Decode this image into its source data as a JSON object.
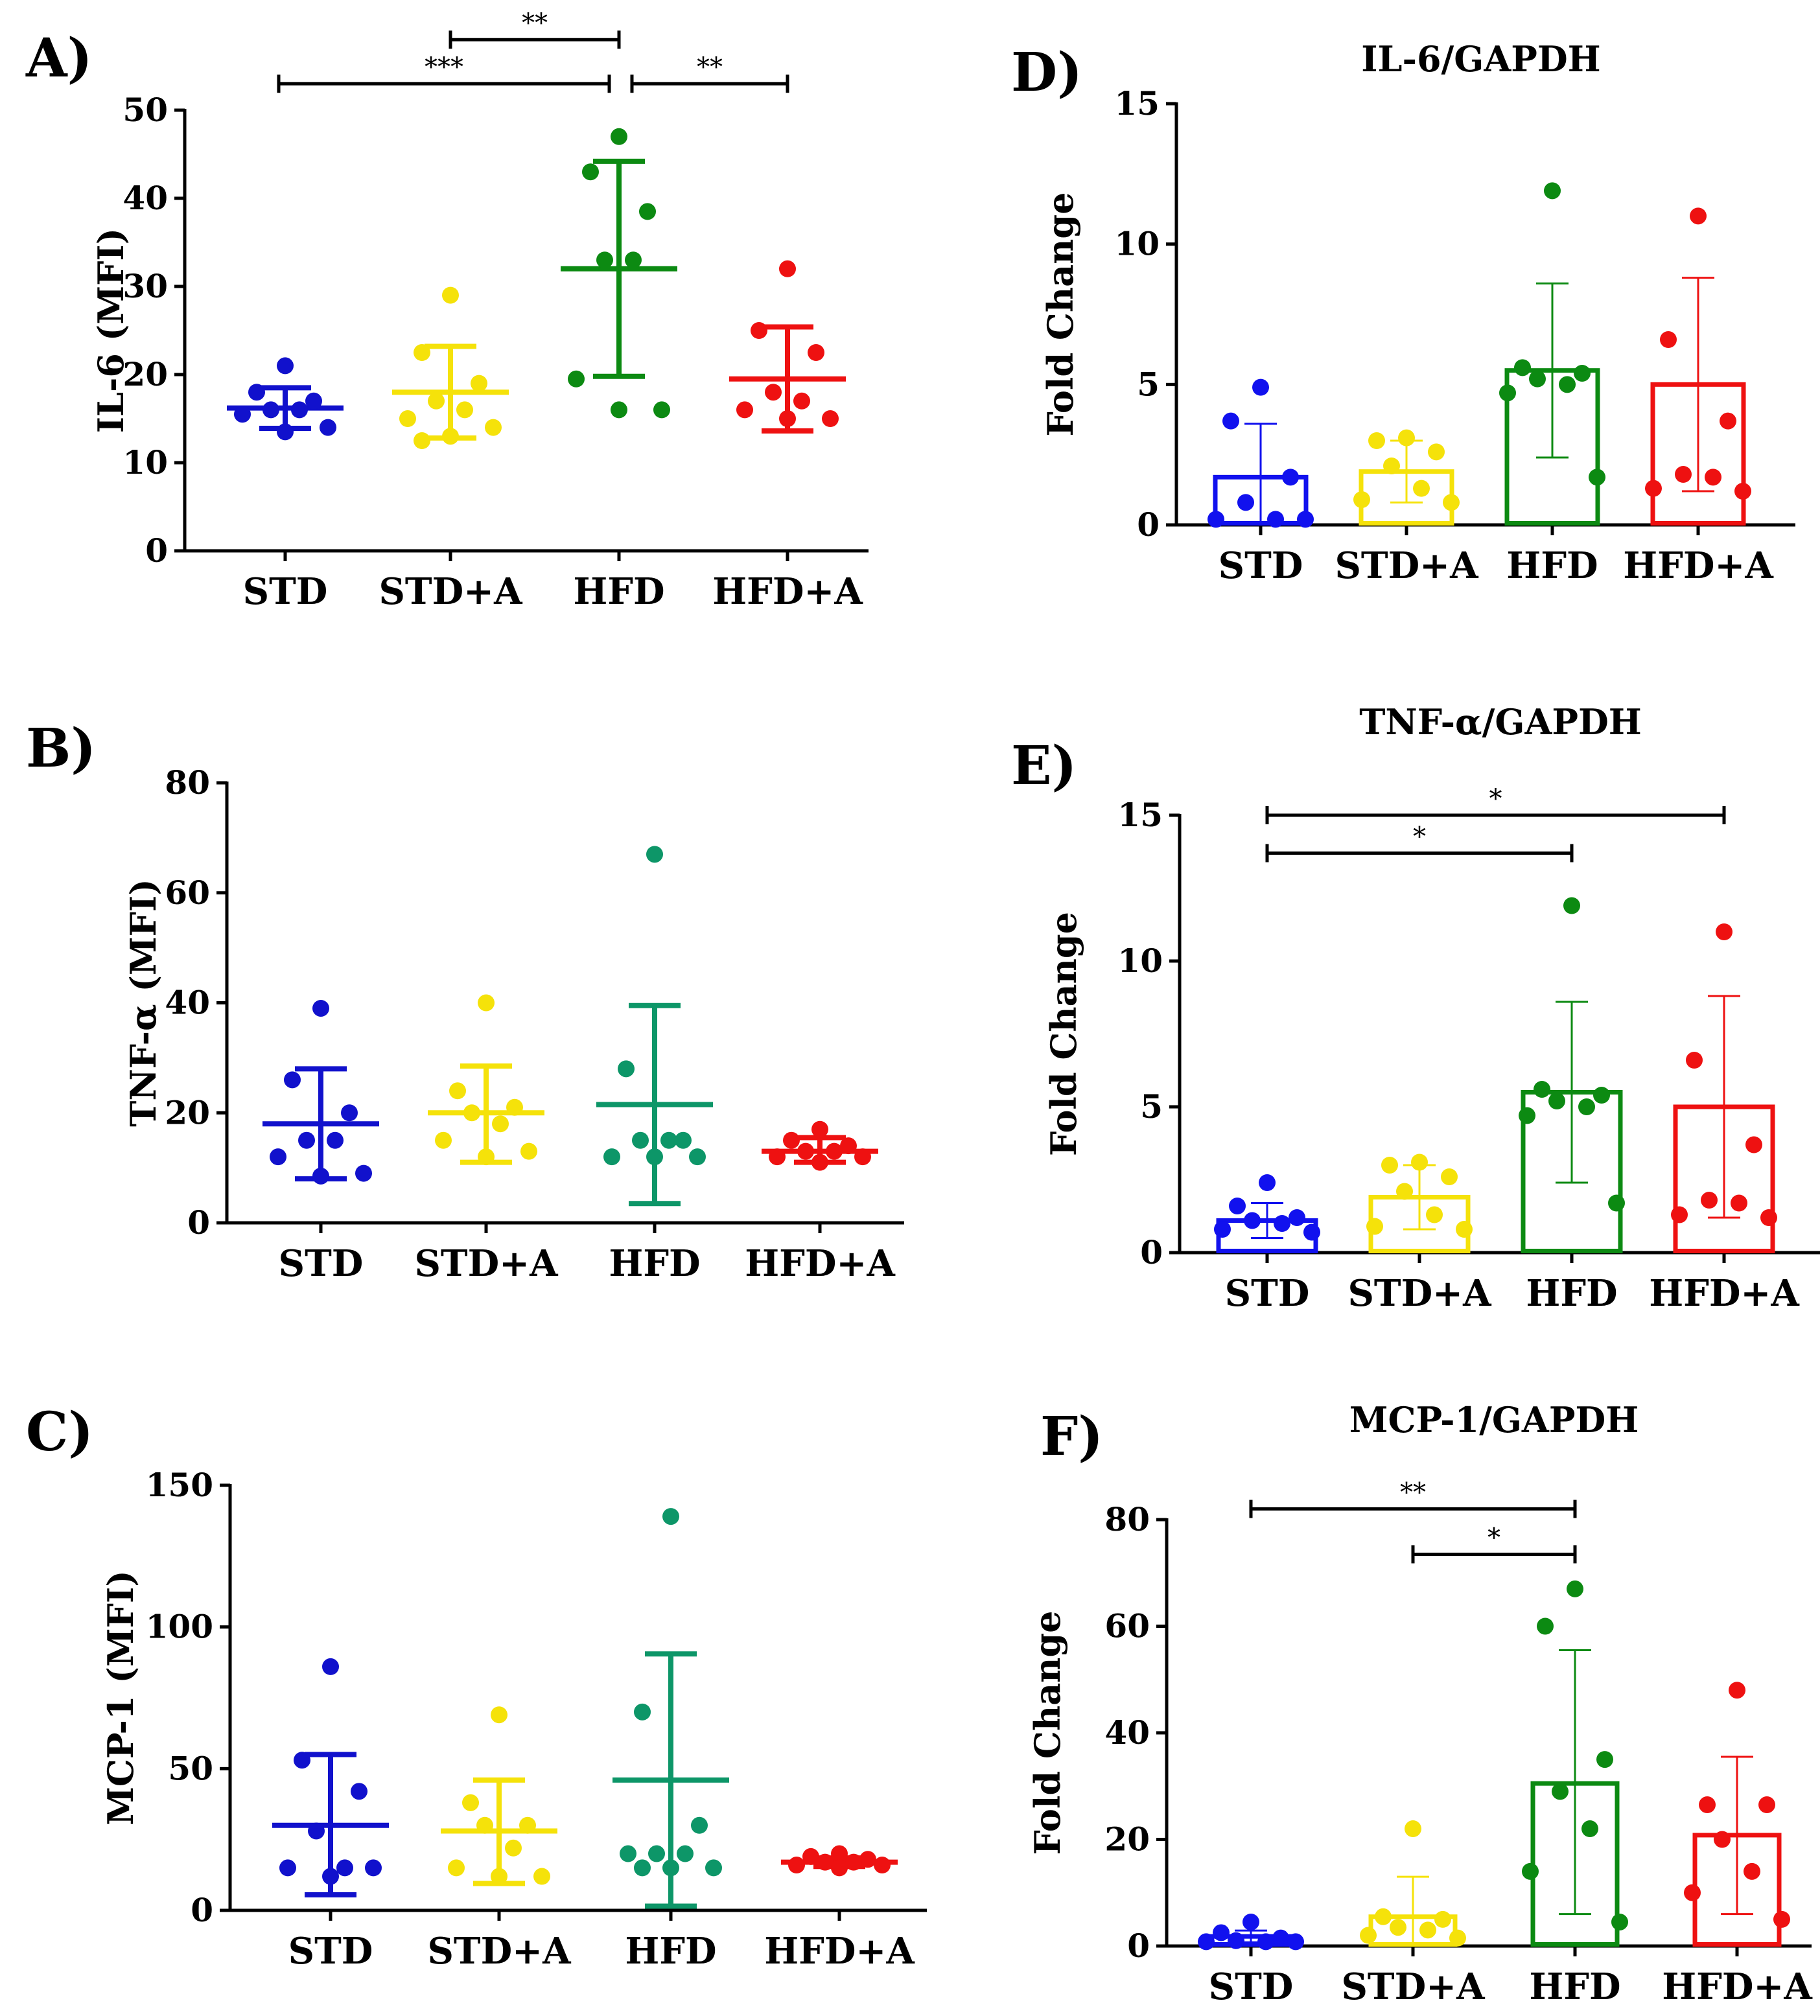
{
  "figure": "Cytokine levels (MFI) and relative gene expression (Fold Change) across four diet groups",
  "chart_data": [
    {
      "id": "A",
      "type": "scatter",
      "label": "A)",
      "title": "",
      "ylabel": "IL-6 (MFI)",
      "ylim": [
        0,
        50
      ],
      "yticks": [
        0,
        10,
        20,
        30,
        40,
        50
      ],
      "lw": 8,
      "categories": [
        "STD",
        "STD+A",
        "HFD",
        "HFD+A"
      ],
      "colors": [
        "#1111cc",
        "#f5e20a",
        "#0c8a12",
        "#ee1111"
      ],
      "groups": [
        {
          "name": "STD",
          "mean": 16.2,
          "upper": 18.5,
          "lower": 13.9,
          "points": [
            21,
            18,
            17,
            16,
            16,
            15.5,
            14,
            13.5
          ]
        },
        {
          "name": "STD+A",
          "mean": 18.0,
          "upper": 23.2,
          "lower": 12.8,
          "points": [
            29,
            22.5,
            19,
            17,
            16,
            15,
            14,
            13,
            12.5
          ]
        },
        {
          "name": "HFD",
          "mean": 32.0,
          "upper": 44.2,
          "lower": 19.8,
          "points": [
            47,
            43,
            38.5,
            33,
            33,
            19.5,
            16,
            16
          ]
        },
        {
          "name": "HFD+A",
          "mean": 19.5,
          "upper": 25.4,
          "lower": 13.6,
          "points": [
            32,
            25,
            22.5,
            18,
            17,
            16,
            15,
            15
          ]
        }
      ],
      "sig": [
        {
          "from": 2,
          "to": 3,
          "level": 58,
          "text": "**"
        },
        {
          "from": 1,
          "to": 3,
          "level": 53,
          "text": "***"
        },
        {
          "from": 3,
          "to": 4,
          "level": 53,
          "text": "**"
        }
      ]
    },
    {
      "id": "B",
      "type": "scatter",
      "label": "B)",
      "title": "",
      "ylabel": "TNF-α (MFI)",
      "ylim": [
        0,
        80
      ],
      "yticks": [
        0,
        20,
        40,
        60,
        80
      ],
      "lw": 8,
      "categories": [
        "STD",
        "STD+A",
        "HFD",
        "HFD+A"
      ],
      "colors": [
        "#1111cc",
        "#f5e20a",
        "#0d9668",
        "#ee1111"
      ],
      "groups": [
        {
          "name": "STD",
          "mean": 18.0,
          "upper": 28.0,
          "lower": 8.0,
          "points": [
            39,
            26,
            20,
            15,
            15,
            12,
            9,
            8.5
          ]
        },
        {
          "name": "STD+A",
          "mean": 20.0,
          "upper": 28.5,
          "lower": 11.0,
          "points": [
            40,
            24,
            21,
            20,
            18,
            15,
            13,
            12
          ]
        },
        {
          "name": "HFD",
          "mean": 21.5,
          "upper": 39.5,
          "lower": 3.5,
          "points": [
            67,
            28,
            15,
            15,
            15,
            12,
            12,
            12
          ]
        },
        {
          "name": "HFD+A",
          "mean": 13.0,
          "upper": 15.5,
          "lower": 11.0,
          "points": [
            17,
            15,
            14,
            13,
            13,
            12,
            12,
            11
          ]
        }
      ],
      "sig": []
    },
    {
      "id": "C",
      "type": "scatter",
      "label": "C)",
      "title": "",
      "ylabel": "MCP-1 (MFI)",
      "ylim": [
        0,
        150
      ],
      "yticks": [
        0,
        50,
        100,
        150
      ],
      "lw": 8,
      "categories": [
        "STD",
        "STD+A",
        "HFD",
        "HFD+A"
      ],
      "colors": [
        "#1111cc",
        "#f5e20a",
        "#0d9668",
        "#ee1111"
      ],
      "groups": [
        {
          "name": "STD",
          "mean": 30.0,
          "upper": 55.0,
          "lower": 5.5,
          "points": [
            86,
            53,
            42,
            28,
            15,
            15,
            15,
            12
          ]
        },
        {
          "name": "STD+A",
          "mean": 28.0,
          "upper": 46.0,
          "lower": 9.5,
          "points": [
            69,
            38,
            30,
            30,
            22,
            15,
            12,
            12
          ]
        },
        {
          "name": "HFD",
          "mean": 46.0,
          "upper": 90.5,
          "lower": 1.5,
          "points": [
            139,
            70,
            30,
            20,
            20,
            20,
            15,
            15,
            15
          ]
        },
        {
          "name": "HFD+A",
          "mean": 17.0,
          "upper": 18.5,
          "lower": 15.5,
          "points": [
            20,
            19,
            18,
            17,
            17,
            16,
            16,
            15
          ]
        }
      ],
      "sig": []
    },
    {
      "id": "D",
      "type": "bar",
      "label": "D)",
      "title": "IL-6/GAPDH",
      "ylabel": "Fold Change",
      "ylim": [
        0,
        15
      ],
      "yticks": [
        0,
        5,
        10,
        15
      ],
      "lw": 3,
      "categories": [
        "STD",
        "STD+A",
        "HFD",
        "HFD+A"
      ],
      "colors": [
        "#1111ee",
        "#f5e20a",
        "#0c8a12",
        "#ee1111"
      ],
      "groups": [
        {
          "name": "STD",
          "mean": 1.7,
          "upper": 3.6,
          "lower": 0.0,
          "points": [
            4.9,
            3.7,
            1.7,
            0.8,
            0.2,
            0.2,
            0.2
          ]
        },
        {
          "name": "STD+A",
          "mean": 1.9,
          "upper": 3.0,
          "lower": 0.8,
          "points": [
            3.1,
            3.0,
            2.6,
            2.1,
            1.3,
            0.9,
            0.8
          ]
        },
        {
          "name": "HFD",
          "mean": 5.5,
          "upper": 8.6,
          "lower": 2.4,
          "points": [
            11.9,
            5.6,
            5.4,
            5.2,
            5.0,
            4.7,
            1.7
          ]
        },
        {
          "name": "HFD+A",
          "mean": 5.0,
          "upper": 8.8,
          "lower": 1.2,
          "points": [
            11.0,
            6.6,
            3.7,
            1.8,
            1.7,
            1.3,
            1.2
          ]
        }
      ],
      "sig": []
    },
    {
      "id": "E",
      "type": "bar",
      "label": "E)",
      "title": "TNF-α/GAPDH",
      "ylabel": "Fold Change",
      "ylim": [
        0,
        15
      ],
      "yticks": [
        0,
        5,
        10,
        15
      ],
      "lw": 3,
      "categories": [
        "STD",
        "STD+A",
        "HFD",
        "HFD+A"
      ],
      "colors": [
        "#1111ee",
        "#f5e20a",
        "#0c8a12",
        "#ee1111"
      ],
      "groups": [
        {
          "name": "STD",
          "mean": 1.1,
          "upper": 1.7,
          "lower": 0.5,
          "points": [
            2.4,
            1.6,
            1.2,
            1.1,
            1.0,
            0.8,
            0.7
          ]
        },
        {
          "name": "STD+A",
          "mean": 1.9,
          "upper": 3.0,
          "lower": 0.8,
          "points": [
            3.1,
            3.0,
            2.6,
            2.1,
            1.3,
            0.9,
            0.8
          ]
        },
        {
          "name": "HFD",
          "mean": 5.5,
          "upper": 8.6,
          "lower": 2.4,
          "points": [
            11.9,
            5.6,
            5.4,
            5.2,
            5.0,
            4.7,
            1.7
          ]
        },
        {
          "name": "HFD+A",
          "mean": 5.0,
          "upper": 8.8,
          "lower": 1.2,
          "points": [
            11.0,
            6.6,
            3.7,
            1.8,
            1.7,
            1.3,
            1.2
          ]
        }
      ],
      "sig": [
        {
          "from": 1,
          "to": 3,
          "level": 13.7,
          "text": "*"
        },
        {
          "from": 1,
          "to": 4,
          "level": 15.0,
          "text": "*"
        }
      ]
    },
    {
      "id": "F",
      "type": "bar",
      "label": "F)",
      "title": "MCP-1/GAPDH",
      "ylabel": "Fold Change",
      "ylim": [
        0,
        80
      ],
      "yticks": [
        0,
        20,
        40,
        60,
        80
      ],
      "lw": 3,
      "categories": [
        "STD",
        "STD+A",
        "HFD",
        "HFD+A"
      ],
      "colors": [
        "#1111ee",
        "#f5e20a",
        "#0c8a12",
        "#ee1111"
      ],
      "groups": [
        {
          "name": "STD",
          "mean": 1.8,
          "upper": 2.9,
          "lower": 0.7,
          "points": [
            4.5,
            2.5,
            1.5,
            1.0,
            0.8,
            0.8,
            0.8
          ]
        },
        {
          "name": "STD+A",
          "mean": 5.5,
          "upper": 13.0,
          "lower": 0.0,
          "points": [
            22,
            5.5,
            5.0,
            3.5,
            3.0,
            2.0,
            1.5
          ]
        },
        {
          "name": "HFD",
          "mean": 30.5,
          "upper": 55.5,
          "lower": 6.0,
          "points": [
            67,
            60,
            35,
            29,
            22,
            14,
            4.5
          ]
        },
        {
          "name": "HFD+A",
          "mean": 20.8,
          "upper": 35.5,
          "lower": 6.0,
          "points": [
            48,
            26.5,
            26.5,
            20,
            14,
            10,
            5
          ]
        }
      ],
      "sig": [
        {
          "from": 1,
          "to": 3,
          "level": 82,
          "text": "**"
        },
        {
          "from": 2,
          "to": 3,
          "level": 73.5,
          "text": "*"
        }
      ]
    }
  ]
}
